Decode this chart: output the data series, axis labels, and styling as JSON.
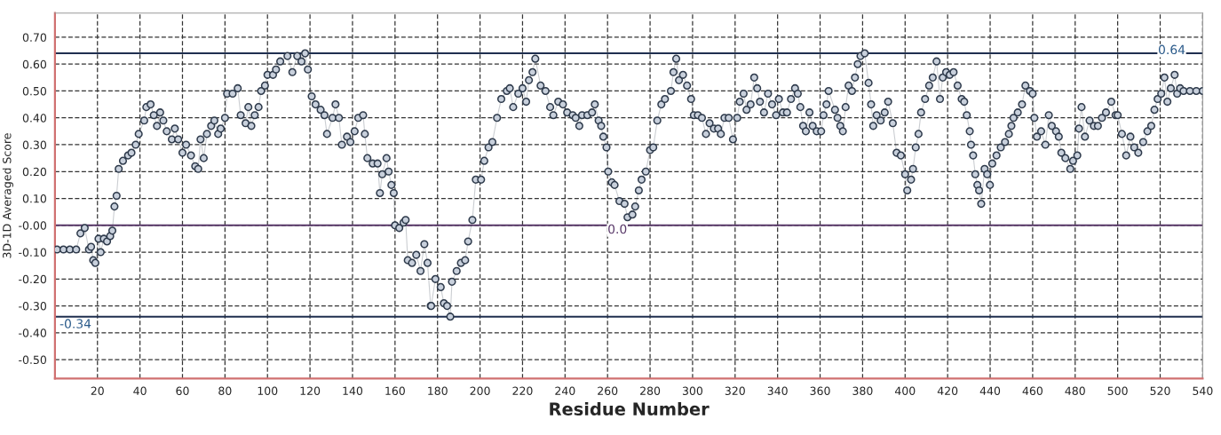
{
  "chart_data": {
    "type": "line",
    "xlabel": "Residue Number",
    "ylabel": "3D-1D Averaged Score",
    "marker": "circle",
    "grid": true,
    "xlim": [
      0,
      540
    ],
    "xticks": [
      20,
      40,
      60,
      80,
      100,
      120,
      140,
      160,
      180,
      200,
      220,
      240,
      260,
      280,
      300,
      320,
      340,
      360,
      380,
      400,
      420,
      440,
      460,
      480,
      500,
      520,
      540
    ],
    "ylim": [
      -0.57,
      0.79
    ],
    "yticks": [
      {
        "value": 0.7,
        "label": "0.70"
      },
      {
        "value": 0.6,
        "label": "0.60"
      },
      {
        "value": 0.5,
        "label": "0.50"
      },
      {
        "value": 0.4,
        "label": "0.40"
      },
      {
        "value": 0.3,
        "label": "0.30"
      },
      {
        "value": 0.2,
        "label": "0.20"
      },
      {
        "value": 0.1,
        "label": "0.10"
      },
      {
        "value": 0,
        "label": "-0.00"
      },
      {
        "value": -0.1,
        "label": "-0.10"
      },
      {
        "value": -0.2,
        "label": "-0.20"
      },
      {
        "value": -0.3,
        "label": "-0.30"
      },
      {
        "value": -0.4,
        "label": "-0.40"
      },
      {
        "value": -0.5,
        "label": "-0.50"
      }
    ],
    "ref_lines": [
      {
        "axis": "y",
        "value": 0.64,
        "label": "0.64",
        "color": "#1f2f4f"
      },
      {
        "axis": "y",
        "value": 0,
        "label": "0.0",
        "color": "#5a3a6a"
      },
      {
        "axis": "y",
        "value": -0.34,
        "label": "-0.34",
        "color": "#1f2f4f"
      }
    ],
    "series": [
      {
        "color": "#2f3b4c",
        "x": [
          1,
          4,
          7,
          10,
          12,
          14,
          16,
          17,
          18,
          19,
          20.5,
          21.5,
          23,
          24.5,
          26,
          27,
          28,
          29,
          30,
          32,
          34.4,
          36,
          38,
          39.4,
          42,
          43,
          45,
          46.5,
          48,
          49.5,
          51,
          52.6,
          55,
          56.4,
          58,
          60,
          61.7,
          64,
          66,
          67.4,
          68.5,
          70,
          71.5,
          73.5,
          75,
          76.8,
          78,
          80,
          81,
          83.6,
          86,
          87.4,
          89.7,
          91,
          92.4,
          94,
          95.8,
          97,
          98.8,
          100,
          102.6,
          104,
          106,
          109.4,
          111.7,
          114,
          116,
          117.7,
          119,
          120.8,
          122.6,
          125,
          126.8,
          128,
          130.6,
          132,
          133.6,
          135,
          137.4,
          139,
          141,
          142.7,
          145,
          145.8,
          147,
          149.5,
          151.8,
          152.9,
          154,
          156,
          157,
          158.3,
          159.4,
          160,
          162,
          164,
          165,
          166,
          168,
          170,
          172,
          173.8,
          175.3,
          176.8,
          177,
          179,
          181.5,
          183,
          184.5,
          186,
          186.8,
          189,
          191,
          193,
          194.4,
          196.4,
          198,
          200.5,
          202,
          204,
          205.8,
          208,
          210,
          212.6,
          214,
          215.6,
          218,
          220,
          221.7,
          223,
          224.7,
          226,
          228.5,
          230.8,
          233,
          234.5,
          236.8,
          239,
          241,
          243.6,
          245,
          246.7,
          248,
          250.5,
          252.7,
          254,
          255.8,
          257,
          258,
          259.5,
          260.3,
          262,
          263.3,
          265.6,
          268,
          269.4,
          271.7,
          273,
          274.7,
          276,
          278,
          280,
          281.5,
          283.4,
          285.3,
          287,
          289.8,
          291,
          292.3,
          293.6,
          295.5,
          297.4,
          299.3,
          300.6,
          302.5,
          304.4,
          306.3,
          308,
          310,
          312,
          313.3,
          315,
          317,
          319,
          321,
          322.2,
          324,
          325.4,
          327.3,
          329,
          330.4,
          331.7,
          333.6,
          335.5,
          337.4,
          339.3,
          340.6,
          342.5,
          344.4,
          346.3,
          348.2,
          349.5,
          350.7,
          352,
          353.3,
          355,
          356.5,
          358.4,
          360.5,
          361.6,
          363,
          364,
          367,
          368.2,
          369.5,
          370.7,
          372,
          373.4,
          375,
          376.4,
          377.7,
          379,
          381,
          382.8,
          384,
          385,
          386.6,
          388.5,
          390.4,
          392,
          394.2,
          396,
          398,
          400,
          401,
          402.8,
          403.7,
          405,
          406.3,
          407.5,
          409.4,
          411.3,
          413,
          414.8,
          416.4,
          417.7,
          419.3,
          421,
          422.8,
          424.7,
          426.6,
          427.8,
          429,
          430.4,
          431,
          432,
          433,
          434,
          434.8,
          435.8,
          437.4,
          438.6,
          439.9,
          441,
          443,
          445,
          447,
          448.8,
          450,
          451,
          453,
          455,
          456.6,
          458.7,
          460,
          460.8,
          462,
          464,
          466,
          467.6,
          469,
          471,
          472.3,
          473.5,
          475.4,
          477.7,
          479,
          481,
          481.8,
          483,
          484.6,
          486.8,
          488.8,
          490.7,
          492.6,
          494.5,
          497,
          499,
          500,
          502,
          504,
          506,
          507.8,
          509.7,
          512,
          514,
          515.8,
          517.3,
          518.8,
          520.5,
          522,
          523.4,
          525,
          526.8,
          528,
          529.4,
          531,
          534,
          537,
          540
        ],
        "values": [
          -0.09,
          -0.09,
          -0.09,
          -0.09,
          -0.03,
          -0.01,
          -0.09,
          -0.08,
          -0.13,
          -0.14,
          -0.05,
          -0.1,
          -0.05,
          -0.06,
          -0.04,
          -0.02,
          0.07,
          0.11,
          0.21,
          0.24,
          0.26,
          0.27,
          0.3,
          0.34,
          0.39,
          0.44,
          0.45,
          0.41,
          0.37,
          0.42,
          0.39,
          0.35,
          0.32,
          0.36,
          0.32,
          0.27,
          0.3,
          0.26,
          0.22,
          0.21,
          0.32,
          0.25,
          0.34,
          0.37,
          0.39,
          0.34,
          0.36,
          0.4,
          0.49,
          0.49,
          0.51,
          0.41,
          0.38,
          0.44,
          0.37,
          0.41,
          0.44,
          0.5,
          0.52,
          0.56,
          0.56,
          0.58,
          0.61,
          0.63,
          0.57,
          0.63,
          0.61,
          0.64,
          0.58,
          0.48,
          0.45,
          0.43,
          0.41,
          0.34,
          0.4,
          0.45,
          0.4,
          0.3,
          0.33,
          0.31,
          0.35,
          0.4,
          0.41,
          0.34,
          0.25,
          0.23,
          0.23,
          0.12,
          0.19,
          0.25,
          0.2,
          0.15,
          0.12,
          0.0,
          -0.01,
          0.01,
          0.02,
          -0.13,
          -0.14,
          -0.11,
          -0.17,
          -0.07,
          -0.14,
          -0.3,
          -0.3,
          -0.2,
          -0.23,
          -0.29,
          -0.3,
          -0.34,
          -0.21,
          -0.17,
          -0.14,
          -0.13,
          -0.06,
          0.02,
          0.17,
          0.17,
          0.24,
          0.29,
          0.31,
          0.4,
          0.47,
          0.5,
          0.51,
          0.44,
          0.49,
          0.51,
          0.46,
          0.54,
          0.57,
          0.62,
          0.52,
          0.5,
          0.44,
          0.41,
          0.46,
          0.45,
          0.42,
          0.41,
          0.4,
          0.37,
          0.41,
          0.41,
          0.42,
          0.45,
          0.39,
          0.37,
          0.33,
          0.29,
          0.2,
          0.16,
          0.15,
          0.09,
          0.08,
          0.03,
          0.04,
          0.07,
          0.13,
          0.17,
          0.2,
          0.28,
          0.29,
          0.39,
          0.45,
          0.47,
          0.5,
          0.57,
          0.62,
          0.54,
          0.56,
          0.52,
          0.47,
          0.41,
          0.41,
          0.4,
          0.34,
          0.38,
          0.36,
          0.36,
          0.34,
          0.4,
          0.4,
          0.32,
          0.4,
          0.46,
          0.49,
          0.43,
          0.45,
          0.55,
          0.51,
          0.46,
          0.42,
          0.49,
          0.45,
          0.41,
          0.47,
          0.42,
          0.42,
          0.47,
          0.51,
          0.49,
          0.44,
          0.37,
          0.35,
          0.42,
          0.37,
          0.35,
          0.35,
          0.41,
          0.45,
          0.5,
          0.43,
          0.4,
          0.37,
          0.35,
          0.44,
          0.52,
          0.5,
          0.55,
          0.6,
          0.63,
          0.64,
          0.53,
          0.45,
          0.37,
          0.41,
          0.39,
          0.42,
          0.46,
          0.38,
          0.27,
          0.26,
          0.19,
          0.13,
          0.17,
          0.21,
          0.29,
          0.34,
          0.42,
          0.47,
          0.52,
          0.55,
          0.61,
          0.47,
          0.55,
          0.57,
          0.56,
          0.57,
          0.52,
          0.47,
          0.46,
          0.41,
          0.35,
          0.3,
          0.26,
          0.19,
          0.15,
          0.13,
          0.08,
          0.21,
          0.19,
          0.15,
          0.23,
          0.26,
          0.29,
          0.31,
          0.34,
          0.37,
          0.4,
          0.42,
          0.45,
          0.52,
          0.5,
          0.49,
          0.4,
          0.33,
          0.35,
          0.3,
          0.41,
          0.37,
          0.35,
          0.33,
          0.27,
          0.25,
          0.21,
          0.24,
          0.26,
          0.36,
          0.44,
          0.33,
          0.39,
          0.37,
          0.37,
          0.4,
          0.42,
          0.46,
          0.41,
          0.41,
          0.34,
          0.26,
          0.33,
          0.29,
          0.27,
          0.31,
          0.35,
          0.37,
          0.43,
          0.47,
          0.49,
          0.55,
          0.46,
          0.51,
          0.56,
          0.49,
          0.51,
          0.5,
          0.5,
          0.5,
          0.5
        ]
      }
    ]
  }
}
